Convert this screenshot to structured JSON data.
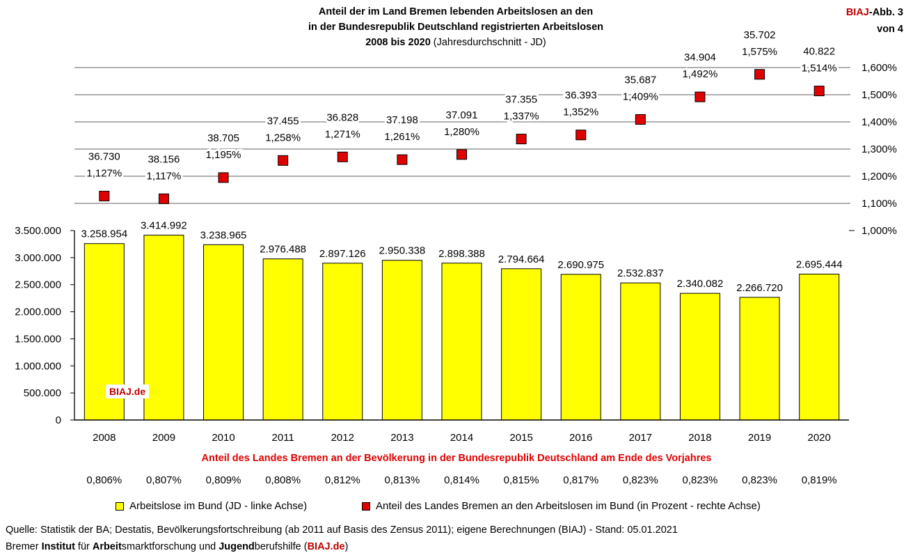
{
  "header": {
    "title_line1": "Anteil der im Land Bremen lebenden Arbeitslosen an den",
    "title_line2": "in der Bundesrepublik Deutschland registrierten Arbeitslosen",
    "title_line3_bold": "2008 bis 2020",
    "title_line3_rest": " (Jahresdurchschnitt - JD)",
    "badge_brand": "BIAJ",
    "badge_text": "-Abb. 3",
    "badge_line2": "von 4"
  },
  "chart_data": {
    "type": "bar",
    "categories": [
      "2008",
      "2009",
      "2010",
      "2011",
      "2012",
      "2013",
      "2014",
      "2015",
      "2016",
      "2017",
      "2018",
      "2019",
      "2020"
    ],
    "series": [
      {
        "name": "Arbeitslose im Bund (JD - linke Achse)",
        "axis": "left",
        "kind": "bar",
        "color": "#ffff00",
        "values": [
          3258954,
          3414992,
          3238965,
          2976488,
          2897126,
          2950338,
          2898388,
          2794664,
          2690975,
          2532837,
          2340082,
          2266720,
          2695444
        ],
        "labels": [
          "3.258.954",
          "3.414.992",
          "3.238.965",
          "2.976.488",
          "2.897.126",
          "2.950.338",
          "2.898.388",
          "2.794.664",
          "2.690.975",
          "2.532.837",
          "2.340.082",
          "2.266.720",
          "2.695.444"
        ]
      },
      {
        "name": "Anteil des Landes Bremen an den Arbeitslosen im Bund (in Prozent - rechte Achse)",
        "axis": "right",
        "kind": "marker",
        "color": "#e00000",
        "values": [
          1.127,
          1.117,
          1.195,
          1.258,
          1.271,
          1.261,
          1.28,
          1.337,
          1.352,
          1.409,
          1.492,
          1.575,
          1.514
        ],
        "labels": [
          "1,127%",
          "1,117%",
          "1,195%",
          "1,258%",
          "1,271%",
          "1,261%",
          "1,280%",
          "1,337%",
          "1,352%",
          "1,409%",
          "1,492%",
          "1,575%",
          "1,514%"
        ],
        "bremen_counts": [
          "36.730",
          "38.156",
          "38.705",
          "37.455",
          "36.828",
          "37.198",
          "37.091",
          "37.355",
          "36.393",
          "35.687",
          "34.904",
          "35.702",
          "40.822"
        ]
      }
    ],
    "left_axis": {
      "range": [
        0,
        3500000
      ],
      "ticks": [
        0,
        500000,
        1000000,
        1500000,
        2000000,
        2500000,
        3000000,
        3500000
      ],
      "tick_labels": [
        "0",
        "500.000",
        "1.000.000",
        "1.500.000",
        "2.000.000",
        "2.500.000",
        "3.000.000",
        "3.500.000"
      ]
    },
    "right_axis": {
      "range": [
        1.0,
        1.6
      ],
      "ticks": [
        1.0,
        1.1,
        1.2,
        1.3,
        1.4,
        1.5,
        1.6
      ],
      "tick_labels": [
        "1,000%",
        "1,100%",
        "1,200%",
        "1,300%",
        "1,400%",
        "1,500%",
        "1,600%"
      ]
    },
    "population_share_title": "Anteil des Landes Bremen an der Bevölkerung in der Bundesrepublik Deutschland am Ende des Vorjahres",
    "population_share": [
      "0,806%",
      "0,807%",
      "0,809%",
      "0,808%",
      "0,812%",
      "0,813%",
      "0,814%",
      "0,815%",
      "0,817%",
      "0,823%",
      "0,823%",
      "0,823%",
      "0,819%"
    ],
    "legend_placement": "bottom"
  },
  "legend": {
    "bar_label": "Arbeitslose im Bund (JD - linke Achse)",
    "marker_label": "Anteil des Landes Bremen an den Arbeitslosen im Bund (in Prozent - rechte Achse)"
  },
  "watermark": "BIAJ.de",
  "footer": {
    "source": "Quelle: Statistik der BA; Destatis, Bevölkerungsfortschreibung (ab 2011 auf Basis des Zensus 2011); eigene Berechnungen (BIAJ) - Stand: 05.01.2021",
    "inst_1": "Bremer ",
    "inst_2": "Institut",
    "inst_3": " für ",
    "inst_4": "Arbeit",
    "inst_5": "smarktforschung und ",
    "inst_6": "Jugend",
    "inst_7": "berufshilfe (",
    "inst_8": "BIAJ.de",
    "inst_9": ")"
  },
  "colors": {
    "bar": "#ffff00",
    "marker": "#e00000",
    "accent": "#c00000",
    "grid": "#7f7f7f"
  }
}
